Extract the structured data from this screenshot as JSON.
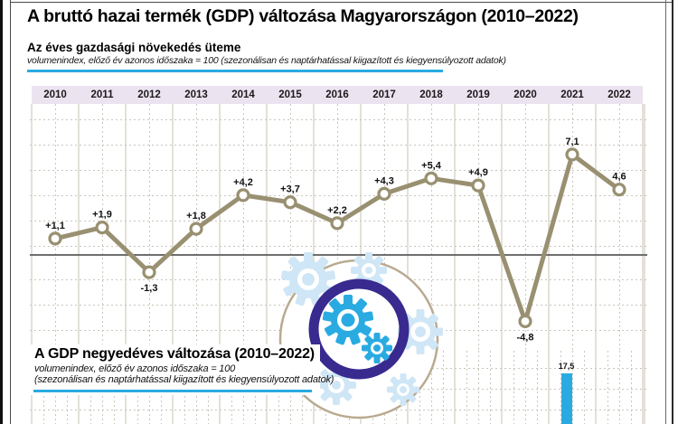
{
  "header": {
    "title": "A bruttó hazai termék (GDP) változása Magyarországon (2010–2022)"
  },
  "annual_chart": {
    "heading": "Az éves gazdasági növekedés üteme",
    "note": "volumenindex, előző év azonos időszaka = 100 (szezonálisan és naptárhatással kiigazított és kiegyensúlyozott adatok)"
  },
  "quarterly_chart": {
    "heading": "A GDP negyedéves változása (2010–2022)",
    "note_line1": "volumenindex, előző év azonos időszaka = 100",
    "note_line2": "(szezonálisan és naptárhatással kiigazított és kiegyensúlyozott adatok)"
  },
  "icon": {
    "name": "gears-economy-icon"
  },
  "colors": {
    "accent_cyan": "#29abe2",
    "line_olive": "#999071",
    "indigo_ring": "#382a8e",
    "tan_circle": "#b9aa90",
    "pale_gear": "#cfe6f6",
    "band_lavender": "#ece3f0",
    "grid_solid": "#e3e1d8",
    "grid_dotted": "#c9c6ba",
    "zero_line": "#6e6e6e"
  },
  "chart_data": [
    {
      "type": "line",
      "title": "Az éves gazdasági növekedés üteme",
      "subtitle": "volumenindex, előző év azonos időszaka = 100 (szezonálisan és naptárhatással kiigazított és kiegyensúlyozott adatok)",
      "categories": [
        "2010",
        "2011",
        "2012",
        "2013",
        "2014",
        "2015",
        "2016",
        "2017",
        "2018",
        "2019",
        "2020",
        "2021",
        "2022"
      ],
      "values": [
        1.1,
        1.9,
        -1.3,
        1.8,
        4.2,
        3.7,
        2.2,
        4.3,
        5.4,
        4.9,
        -4.8,
        7.1,
        4.6
      ],
      "point_labels": [
        "+1,1",
        "+1,9",
        "-1,3",
        "+1,8",
        "+4,2",
        "+3,7",
        "+2,2",
        "+4,3",
        "+5,4",
        "+4,9",
        "-4,8",
        "7,1",
        "4,6"
      ],
      "series_color": "#999071",
      "zero_line": true,
      "grid": "vertical solid per year, dotted mid-year, horizontal dotted",
      "ylim_visible": [
        -6,
        10
      ],
      "legend": "none"
    },
    {
      "type": "bar",
      "title": "A GDP negyedéves változása (2010–2022)",
      "subtitle": "volumenindex, előző év azonos időszaka = 100 (szezonálisan és naptárhatással kiigazított és kiegyensúlyozott adatok)",
      "partially_visible": true,
      "visible_bars": [
        {
          "label": "17,5",
          "value": 17.5,
          "year_column": "2021"
        }
      ],
      "bar_color": "#29abe2"
    }
  ]
}
